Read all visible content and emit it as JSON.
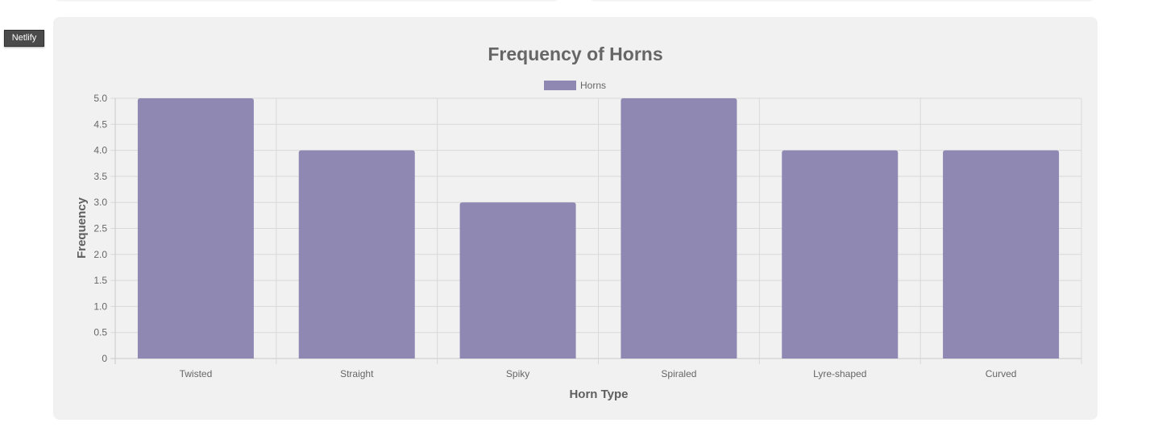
{
  "badge": {
    "label": "Netlify"
  },
  "chart_data": {
    "type": "bar",
    "title": "Frequency of Horns",
    "xlabel": "Horn Type",
    "ylabel": "Frequency",
    "categories": [
      "Twisted",
      "Straight",
      "Spiky",
      "Spiraled",
      "Lyre-shaped",
      "Curved"
    ],
    "series": [
      {
        "name": "Horns",
        "values": [
          5,
          4,
          3,
          5,
          4,
          4
        ],
        "color": "#8e88b2"
      }
    ],
    "ylim": [
      0,
      5
    ],
    "yticks": [
      "0",
      "0.5",
      "1.0",
      "1.5",
      "2.0",
      "2.5",
      "3.0",
      "3.5",
      "4.0",
      "4.5",
      "5.0"
    ],
    "legend_position": "top",
    "grid": true
  }
}
